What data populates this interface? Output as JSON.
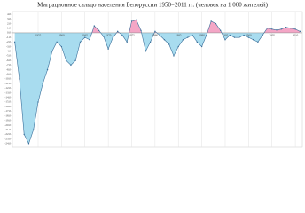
{
  "chart_data": {
    "type": "area",
    "title": "Миграционное сальдо населения Белоруссии 1950−2011 гг. (человек на 1 000 жителей)",
    "x": [
      1950,
      1951,
      1952,
      1953,
      1954,
      1955,
      1956,
      1957,
      1958,
      1959,
      1960,
      1961,
      1962,
      1963,
      1964,
      1965,
      1966,
      1967,
      1968,
      1969,
      1970,
      1971,
      1972,
      1973,
      1974,
      1975,
      1976,
      1977,
      1978,
      1979,
      1980,
      1981,
      1982,
      1983,
      1984,
      1985,
      1986,
      1987,
      1988,
      1989,
      1990,
      1991,
      1992,
      1993,
      1994,
      1995,
      1996,
      1997,
      1998,
      1999,
      2000,
      2001,
      2002,
      2003,
      2004,
      2005,
      2006,
      2007,
      2008,
      2009,
      2010,
      2011
    ],
    "values": [
      -2,
      -10,
      -22,
      -24,
      -21,
      -15,
      -11,
      -8,
      -4,
      -2,
      -3,
      -6,
      -7,
      -6,
      -2,
      -1,
      -1.5,
      1.5,
      0.5,
      -0.8,
      -3.5,
      -1,
      0.3,
      -0.5,
      -2,
      2.5,
      2.8,
      0.5,
      -4,
      -2,
      0.3,
      -0.5,
      -1.5,
      -2.5,
      -5,
      -3,
      -1.5,
      -1,
      -0.5,
      -2,
      -3,
      -0.5,
      2.5,
      2,
      0.5,
      -1.5,
      -0.5,
      -1,
      -1,
      -0.5,
      -1,
      -1.5,
      -2,
      -0.5,
      1,
      0.8,
      0.6,
      0.8,
      1.2,
      1,
      0.8,
      0.3
    ],
    "positive_color": "#f4a6c6",
    "negative_color": "#a8dcef",
    "line_color": "#3a6f9a",
    "xlim": [
      1949.5,
      2011.5
    ],
    "xticks": [
      1955,
      1960,
      1965,
      1970,
      1975,
      1980,
      1985,
      1990,
      1995,
      2000,
      2005,
      2010
    ],
    "ylim": [
      -24.8,
      4.6
    ],
    "yticks": [
      {
        "value": 4,
        "label": "4.0"
      },
      {
        "value": 3,
        "label": "3.0"
      },
      {
        "value": 2,
        "label": "2.0"
      },
      {
        "value": 1,
        "label": "1.0"
      },
      {
        "value": 0,
        "label": "0.0"
      },
      {
        "value": -1,
        "label": "-1.0"
      },
      {
        "value": -2,
        "label": "-2.0"
      },
      {
        "value": -3,
        "label": "-3.0"
      },
      {
        "value": -4,
        "label": "-4.0"
      },
      {
        "value": -5,
        "label": "-5.0"
      },
      {
        "value": -6,
        "label": "-6.0"
      },
      {
        "value": -7,
        "label": "-7.0"
      },
      {
        "value": -8,
        "label": "-8.0"
      },
      {
        "value": -9,
        "label": "-9.0"
      },
      {
        "value": -10,
        "label": "-10.0"
      },
      {
        "value": -11,
        "label": "-11.0"
      },
      {
        "value": -12,
        "label": "-12.0"
      },
      {
        "value": -13,
        "label": "-13.0"
      },
      {
        "value": -14,
        "label": "-14.0"
      },
      {
        "value": -15,
        "label": "-15.0"
      },
      {
        "value": -16,
        "label": "-16.0"
      },
      {
        "value": -17,
        "label": "-17.0"
      },
      {
        "value": -18,
        "label": "-18.0"
      },
      {
        "value": -19,
        "label": "-19.0"
      },
      {
        "value": -20,
        "label": "-20.0"
      },
      {
        "value": -21,
        "label": "-21.0"
      },
      {
        "value": -22,
        "label": "-22.0"
      },
      {
        "value": -23,
        "label": "-23.0"
      },
      {
        "value": -24,
        "label": "-24.0"
      }
    ],
    "grid": true
  }
}
